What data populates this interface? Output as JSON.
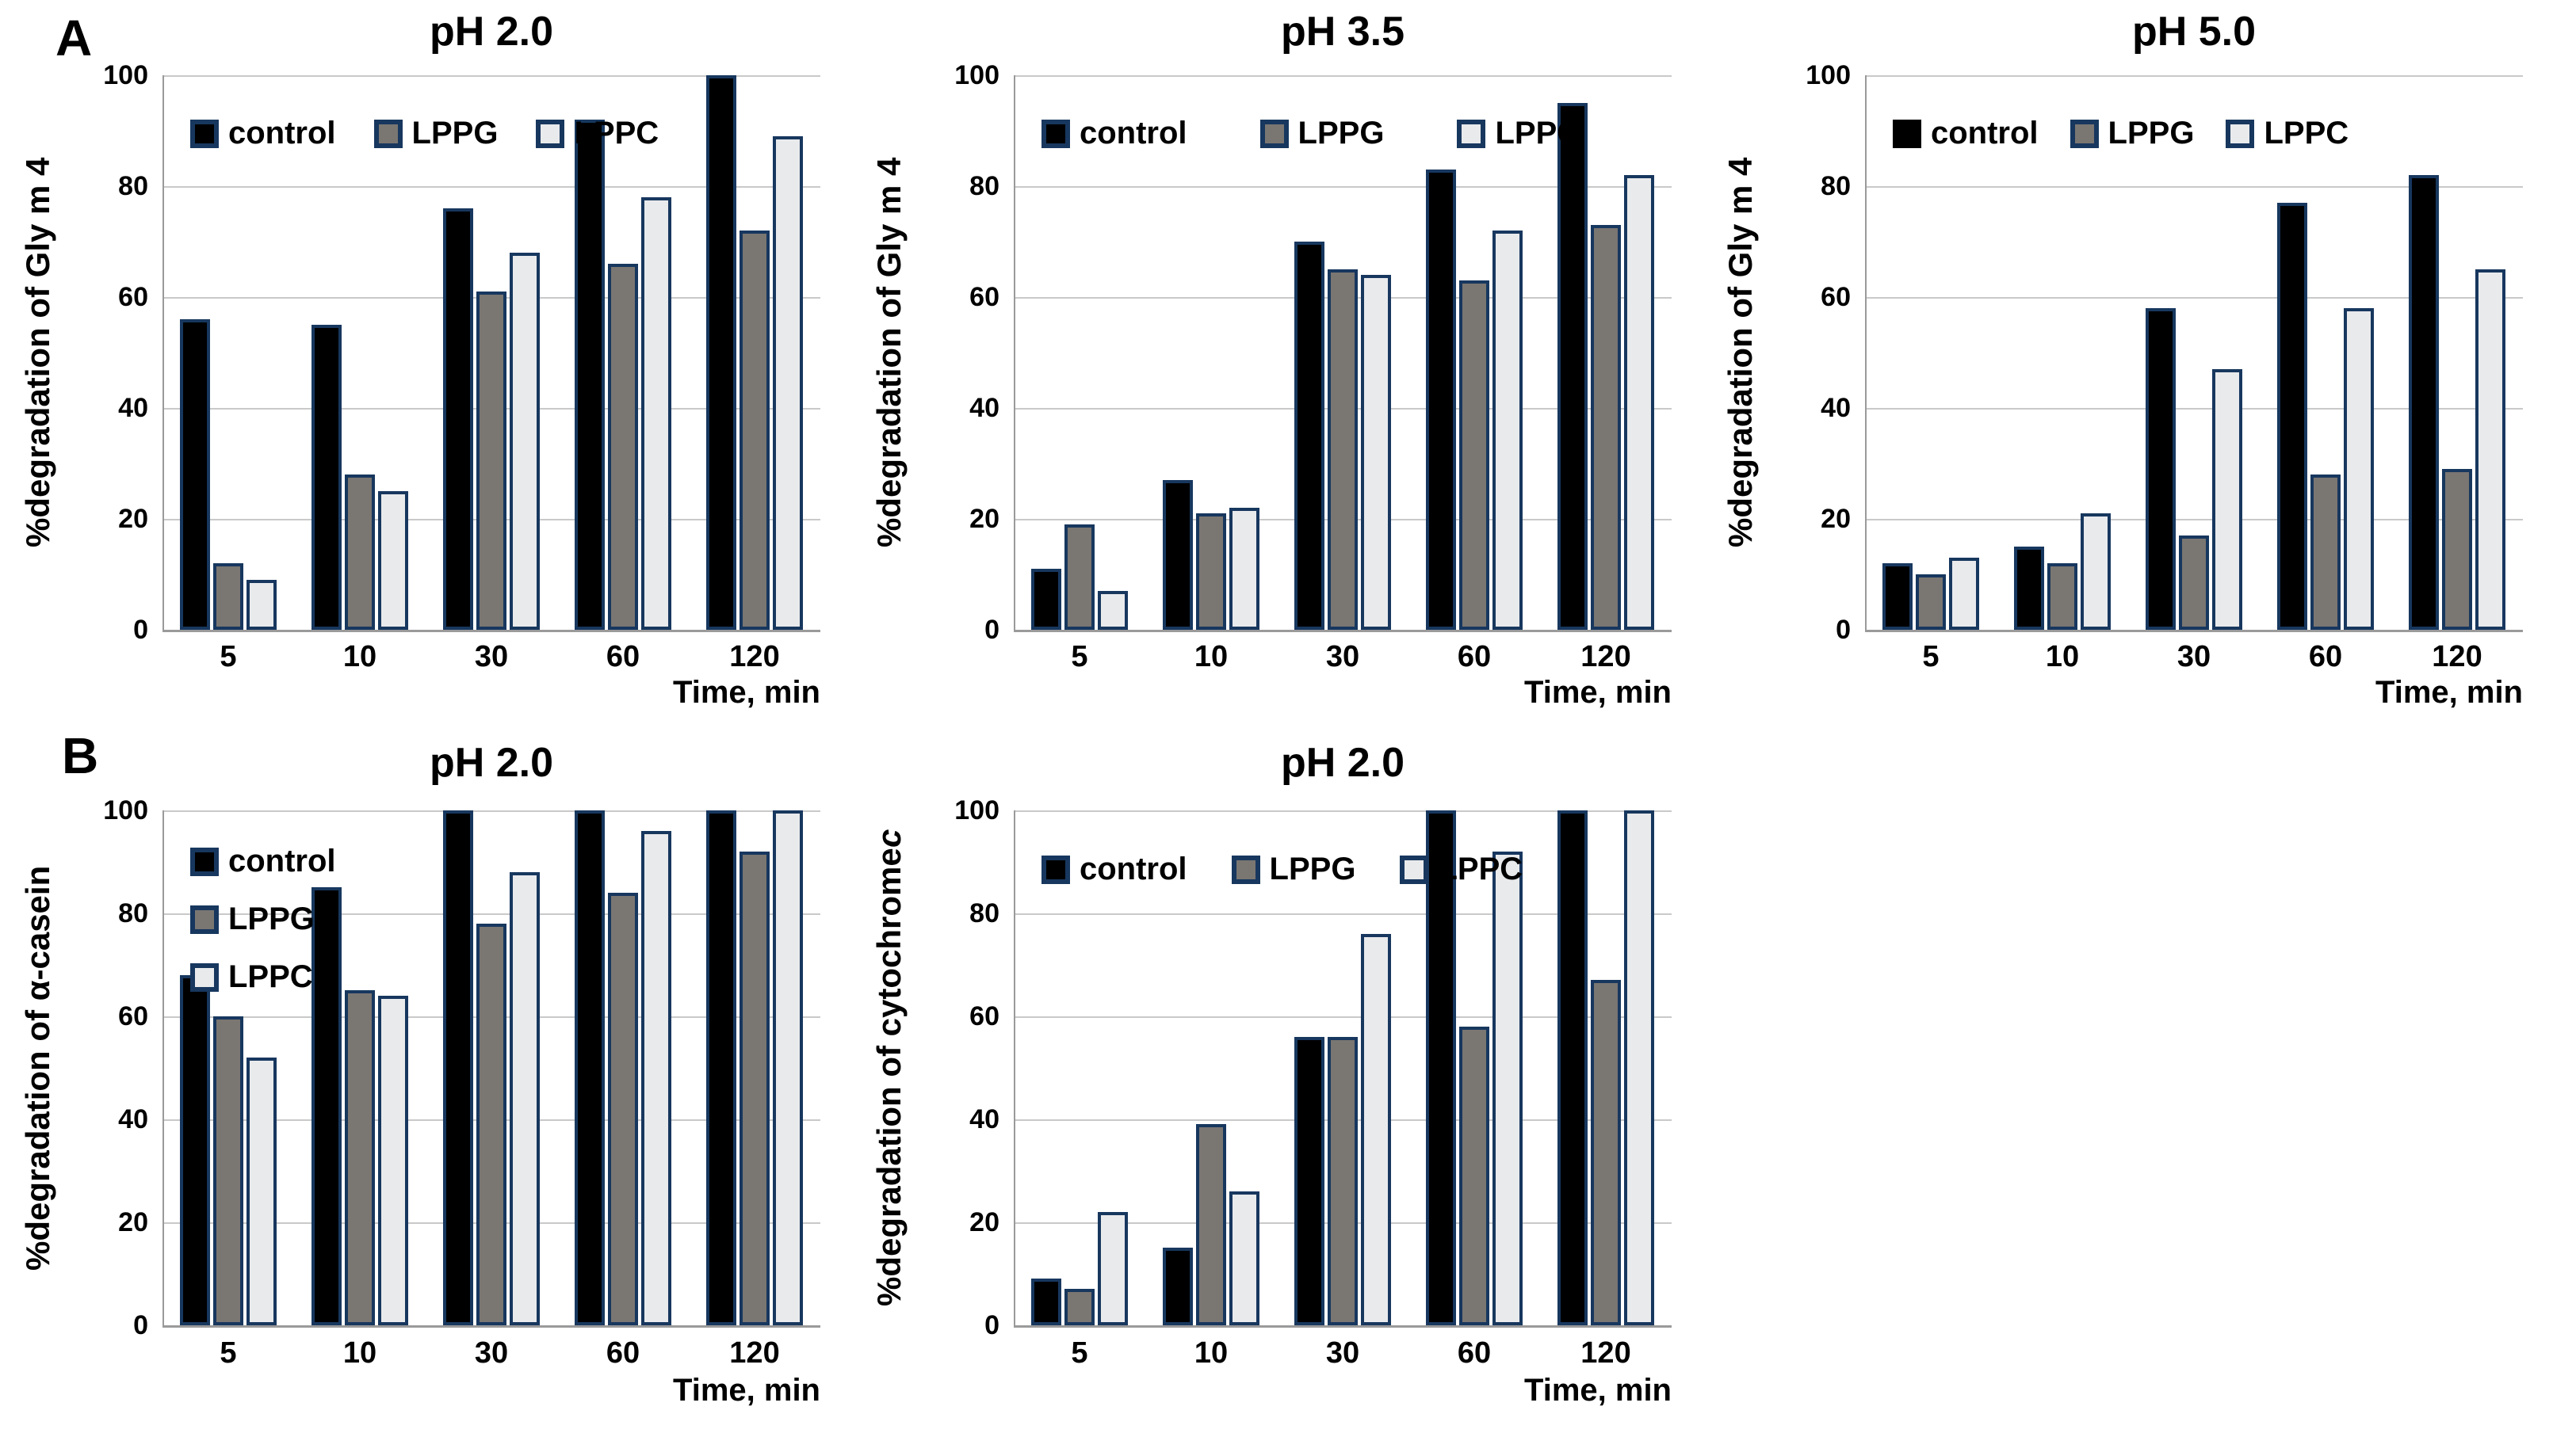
{
  "figure": {
    "panel_a_label": "A",
    "panel_b_label": "B"
  },
  "styles": {
    "bar_border_color": "#17375e",
    "grid_color": "#c9c9c9",
    "axis_color": "#9a9a9a",
    "text_color": "#000000",
    "background": "#ffffff",
    "series_styles": [
      {
        "name": "control",
        "fill": "#000000",
        "border": "#17375e"
      },
      {
        "name": "LPPG",
        "fill": "#7a7672",
        "border": "#17375e"
      },
      {
        "name": "LPPC",
        "fill": "#e9eaec",
        "border": "#17375e"
      }
    ]
  },
  "chart_data": [
    {
      "type": "bar",
      "panel": "A",
      "title": "pH 2.0",
      "ylabel_segments": [
        {
          "text": "%degradation  of Gly m 4",
          "italic": false
        }
      ],
      "xlabel": "Time, min",
      "categories": [
        "5",
        "10",
        "30",
        "60",
        "120"
      ],
      "series": [
        {
          "name": "control",
          "values": [
            56,
            55,
            76,
            92,
            100
          ]
        },
        {
          "name": "LPPG",
          "values": [
            12,
            28,
            61,
            66,
            72
          ]
        },
        {
          "name": "LPPC",
          "values": [
            9,
            25,
            68,
            78,
            89
          ]
        }
      ],
      "ylim": [
        0,
        100
      ],
      "yticks": [
        0,
        20,
        40,
        60,
        80,
        100
      ],
      "grid": true,
      "legend_layout": "horizontal",
      "legend_position": "top-left-inside"
    },
    {
      "type": "bar",
      "panel": "A",
      "title": "pH 3.5",
      "ylabel_segments": [
        {
          "text": "%degradation of Gly m 4",
          "italic": false
        }
      ],
      "xlabel": "Time, min",
      "categories": [
        "5",
        "10",
        "30",
        "60",
        "120"
      ],
      "series": [
        {
          "name": "control",
          "values": [
            11,
            27,
            70,
            83,
            95
          ]
        },
        {
          "name": "LPPG",
          "values": [
            19,
            21,
            65,
            63,
            73
          ]
        },
        {
          "name": "LPPC",
          "values": [
            7,
            22,
            64,
            72,
            82
          ]
        }
      ],
      "ylim": [
        0,
        100
      ],
      "yticks": [
        0,
        20,
        40,
        60,
        80,
        100
      ],
      "grid": true,
      "legend_layout": "horizontal",
      "legend_position": "top-left-inside"
    },
    {
      "type": "bar",
      "panel": "A",
      "title": "pH 5.0",
      "ylabel_segments": [
        {
          "text": "%degradation  of Gly m 4",
          "italic": false
        }
      ],
      "xlabel": "Time, min",
      "categories": [
        "5",
        "10",
        "30",
        "60",
        "120"
      ],
      "series": [
        {
          "name": "control",
          "values": [
            12,
            15,
            58,
            77,
            82
          ]
        },
        {
          "name": "LPPG",
          "values": [
            10,
            12,
            17,
            28,
            29
          ]
        },
        {
          "name": "LPPC",
          "values": [
            13,
            21,
            47,
            58,
            65
          ]
        }
      ],
      "ylim": [
        0,
        100
      ],
      "yticks": [
        0,
        20,
        40,
        60,
        80,
        100
      ],
      "grid": true,
      "legend_layout": "horizontal",
      "legend_position": "top-left-inside"
    },
    {
      "type": "bar",
      "panel": "B",
      "title": "pH 2.0",
      "ylabel_segments": [
        {
          "text": "%degradation  of α-casein",
          "italic": false
        }
      ],
      "xlabel": "Time, min",
      "categories": [
        "5",
        "10",
        "30",
        "60",
        "120"
      ],
      "series": [
        {
          "name": "control",
          "values": [
            68,
            85,
            100,
            100,
            100
          ]
        },
        {
          "name": "LPPG",
          "values": [
            60,
            65,
            78,
            84,
            92
          ]
        },
        {
          "name": "LPPC",
          "values": [
            52,
            64,
            88,
            96,
            100
          ]
        }
      ],
      "ylim": [
        0,
        100
      ],
      "yticks": [
        0,
        20,
        40,
        60,
        80,
        100
      ],
      "grid": true,
      "legend_layout": "vertical",
      "legend_position": "top-left-inside"
    },
    {
      "type": "bar",
      "panel": "B",
      "title": "pH 2.0",
      "ylabel_segments": [
        {
          "text": "%degradation  of cytochrome ",
          "italic": false
        },
        {
          "text": "c",
          "italic": true
        }
      ],
      "xlabel": "Time, min",
      "categories": [
        "5",
        "10",
        "30",
        "60",
        "120"
      ],
      "series": [
        {
          "name": "control",
          "values": [
            9,
            15,
            56,
            100,
            100
          ]
        },
        {
          "name": "LPPG",
          "values": [
            7,
            39,
            56,
            58,
            67
          ]
        },
        {
          "name": "LPPC",
          "values": [
            22,
            26,
            76,
            92,
            100
          ]
        }
      ],
      "ylim": [
        0,
        100
      ],
      "yticks": [
        0,
        20,
        40,
        60,
        80,
        100
      ],
      "grid": true,
      "legend_layout": "horizontal",
      "legend_position": "top-left-inside"
    }
  ]
}
